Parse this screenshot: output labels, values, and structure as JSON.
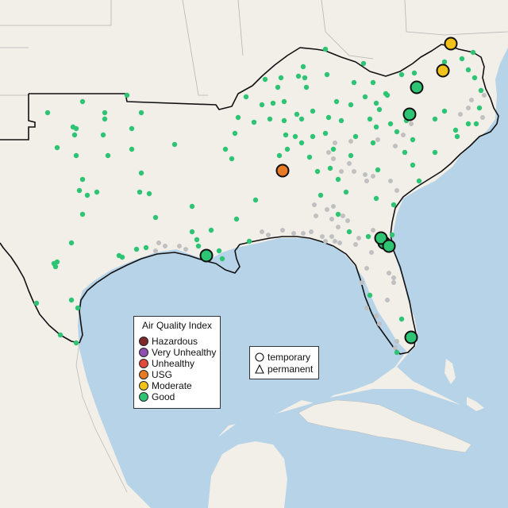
{
  "legend": {
    "title": "Air Quality Index",
    "categories": [
      {
        "label": "Hazardous",
        "color": "#7e2a2a"
      },
      {
        "label": "Very Unhealthy",
        "color": "#8e4fb0"
      },
      {
        "label": "Unhealthy",
        "color": "#e04a3a"
      },
      {
        "label": "USG",
        "color": "#e87a26"
      },
      {
        "label": "Moderate",
        "color": "#f2c21b"
      },
      {
        "label": "Good",
        "color": "#2dc574"
      }
    ]
  },
  "site_legend": {
    "temporary": "temporary",
    "permanent": "permanent"
  },
  "colors": {
    "land": "#f2efe9",
    "water": "#b6d3e8",
    "inactive": "#c0c0c0",
    "border": "#111111"
  }
}
